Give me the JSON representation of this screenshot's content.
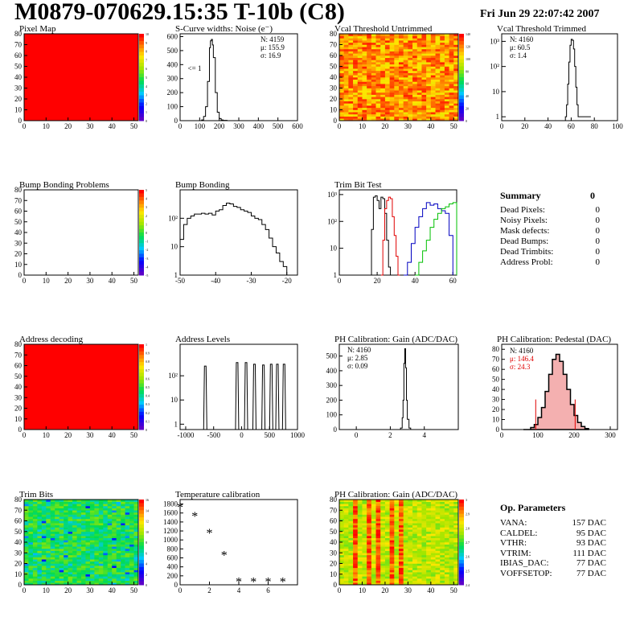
{
  "header": {
    "title": "M0879-070629.15:35 T-10b (C8)",
    "date": "Fri Jun 29 22:07:42 2007"
  },
  "chart_data": [
    {
      "id": "pixel-map",
      "type": "heatmap",
      "title": "Pixel Map",
      "xlim": [
        0,
        52
      ],
      "ylim": [
        0,
        80
      ],
      "xticks": [
        0,
        10,
        20,
        30,
        40,
        50
      ],
      "yticks": [
        0,
        10,
        20,
        30,
        40,
        50,
        60,
        70,
        80
      ],
      "colorbar_ticks": [
        "10",
        "9",
        "8",
        "7",
        "6",
        "5",
        "4",
        "3",
        "2",
        "1",
        "0"
      ],
      "fill": "uniform-red"
    },
    {
      "id": "scurve",
      "type": "line",
      "title": "S-Curve widths: Noise (e⁻)",
      "xlim": [
        0,
        600
      ],
      "ylim": [
        0,
        620
      ],
      "xticks": [
        0,
        100,
        200,
        300,
        400,
        500,
        600
      ],
      "yticks": [
        0,
        100,
        200,
        300,
        400,
        500,
        600
      ],
      "stats": [
        "N: 4159",
        "μ: 155.9",
        "σ: 16.9"
      ],
      "annotation": "<= 1",
      "x": [
        100,
        110,
        120,
        130,
        140,
        150,
        155,
        160,
        165,
        170,
        180,
        190,
        200,
        210,
        220,
        240
      ],
      "y": [
        0,
        5,
        30,
        100,
        280,
        520,
        570,
        580,
        540,
        450,
        200,
        60,
        15,
        5,
        2,
        0
      ]
    },
    {
      "id": "vcal-untrimmed",
      "type": "heatmap",
      "title": "Vcal Threshold Untrimmed",
      "xlim": [
        0,
        52
      ],
      "ylim": [
        0,
        80
      ],
      "xticks": [
        0,
        10,
        20,
        30,
        40,
        50
      ],
      "yticks": [
        0,
        10,
        20,
        30,
        40,
        50,
        60,
        70,
        80
      ],
      "colorbar_ticks": [
        "140",
        "120",
        "100",
        "80",
        "60",
        "40",
        "20",
        "0"
      ],
      "fill": "orange-noisy"
    },
    {
      "id": "vcal-trimmed",
      "type": "line",
      "title": "Vcal Threshold Trimmed",
      "yscale": "log",
      "xlim": [
        0,
        100
      ],
      "ylim": [
        0.7,
        2000
      ],
      "xticks": [
        0,
        20,
        40,
        60,
        80,
        100
      ],
      "yticks": [
        "1",
        "10",
        "10²",
        "10³"
      ],
      "stats": [
        "N: 4160",
        "μ: 60.5",
        "σ: 1.4"
      ],
      "x": [
        55,
        56,
        57,
        58,
        59,
        60,
        61,
        62,
        63,
        64,
        65,
        66,
        70,
        71,
        72,
        74,
        75,
        76,
        77
      ],
      "y": [
        1,
        3,
        20,
        150,
        700,
        1200,
        1100,
        500,
        100,
        15,
        3,
        1,
        1,
        1,
        1,
        1,
        1,
        1,
        1
      ]
    },
    {
      "id": "bump-problems",
      "type": "heatmap",
      "title": "Bump Bonding Problems",
      "xlim": [
        0,
        52
      ],
      "ylim": [
        0,
        80
      ],
      "xticks": [
        0,
        10,
        20,
        30,
        40,
        50
      ],
      "yticks": [
        0,
        10,
        20,
        30,
        40,
        50,
        60,
        70,
        80
      ],
      "colorbar_ticks": [
        "5",
        "4",
        "3",
        "2",
        "1",
        "0",
        "-1",
        "-2",
        "-3",
        "-4",
        "-5"
      ],
      "fill": "empty"
    },
    {
      "id": "bump-bonding",
      "type": "line",
      "title": "Bump Bonding",
      "yscale": "log",
      "xlim": [
        -50,
        -17
      ],
      "ylim": [
        1,
        1000
      ],
      "xticks": [
        -50,
        -40,
        -30,
        -20
      ],
      "yticks": [
        "1",
        "10",
        "10²"
      ],
      "x": [
        -50,
        -49,
        -48,
        -47,
        -46,
        -45,
        -44,
        -43,
        -42,
        -41,
        -40,
        -39,
        -38,
        -37,
        -36,
        -35,
        -34,
        -33,
        -32,
        -31,
        -30,
        -29,
        -28,
        -27,
        -26,
        -25,
        -24,
        -23,
        -22,
        -21,
        -20,
        -19
      ],
      "y": [
        18,
        60,
        100,
        120,
        140,
        140,
        150,
        140,
        150,
        130,
        180,
        200,
        280,
        340,
        320,
        260,
        240,
        200,
        180,
        160,
        120,
        100,
        90,
        60,
        40,
        20,
        10,
        6,
        3,
        2,
        1,
        1
      ]
    },
    {
      "id": "trim-bit-test",
      "type": "line",
      "title": "Trim Bit Test",
      "yscale": "log",
      "xlim": [
        0,
        62
      ],
      "ylim": [
        1,
        1500
      ],
      "xticks": [
        0,
        20,
        40,
        60
      ],
      "yticks": [
        "1",
        "10",
        "10²",
        "10³"
      ],
      "series": [
        {
          "color": "#000000",
          "x": [
            16,
            17,
            18,
            19,
            20,
            21,
            22,
            23,
            24,
            25,
            26,
            27,
            28
          ],
          "y": [
            1,
            50,
            800,
            900,
            600,
            300,
            800,
            700,
            200,
            20,
            2,
            1,
            1
          ]
        },
        {
          "color": "#e00000",
          "x": [
            22,
            23,
            24,
            25,
            26,
            27,
            28,
            29,
            30,
            31,
            32
          ],
          "y": [
            1,
            20,
            300,
            600,
            800,
            700,
            150,
            30,
            5,
            1,
            1
          ]
        },
        {
          "color": "#0000c0",
          "x": [
            34,
            36,
            38,
            40,
            42,
            44,
            46,
            48,
            50,
            52,
            54,
            56,
            58,
            60
          ],
          "y": [
            1,
            3,
            15,
            60,
            150,
            300,
            500,
            400,
            450,
            300,
            250,
            200,
            30,
            1
          ]
        },
        {
          "color": "#00c000",
          "x": [
            40,
            42,
            44,
            46,
            48,
            50,
            52,
            54,
            56,
            58,
            60,
            62
          ],
          "y": [
            1,
            3,
            8,
            20,
            60,
            120,
            200,
            300,
            350,
            450,
            500,
            1
          ]
        }
      ]
    },
    {
      "id": "address-decoding",
      "type": "heatmap",
      "title": "Address decoding",
      "xlim": [
        0,
        52
      ],
      "ylim": [
        0,
        80
      ],
      "xticks": [
        0,
        10,
        20,
        30,
        40,
        50
      ],
      "yticks": [
        0,
        10,
        20,
        30,
        40,
        50,
        60,
        70,
        80
      ],
      "colorbar_ticks": [
        "1",
        "0.9",
        "0.8",
        "0.7",
        "0.6",
        "0.5",
        "0.4",
        "0.3",
        "0.2",
        "0.1",
        "0"
      ],
      "fill": "uniform-red"
    },
    {
      "id": "address-levels",
      "type": "line",
      "title": "Address Levels",
      "yscale": "log",
      "xlim": [
        -1100,
        1000
      ],
      "ylim": [
        0.6,
        2000
      ],
      "xticks": [
        -1000,
        -500,
        0,
        500,
        1000
      ],
      "yticks": [
        "1",
        "10",
        "10²"
      ],
      "peaks": [
        -650,
        -80,
        80,
        230,
        390,
        530,
        640,
        760
      ],
      "heights": [
        250,
        350,
        350,
        300,
        280,
        300,
        300,
        300
      ]
    },
    {
      "id": "ph-gain",
      "type": "line",
      "title": "PH Calibration: Gain (ADC/DAC)",
      "xlim": [
        -1,
        6
      ],
      "ylim": [
        0,
        580
      ],
      "xticks": [
        0,
        2,
        4
      ],
      "yticks": [
        0,
        100,
        200,
        300,
        400,
        500
      ],
      "stats": [
        "N: 4160",
        "μ: 2.85",
        "σ: 0.09"
      ],
      "x": [
        2.5,
        2.6,
        2.7,
        2.75,
        2.8,
        2.85,
        2.9,
        2.95,
        3.0,
        3.1,
        3.2
      ],
      "y": [
        0,
        10,
        80,
        200,
        450,
        550,
        420,
        200,
        70,
        10,
        0
      ]
    },
    {
      "id": "ph-pedestal",
      "type": "area",
      "title": "PH Calibration: Pedestal (DAC)",
      "xlim": [
        0,
        320
      ],
      "ylim": [
        0,
        85
      ],
      "xticks": [
        0,
        100,
        200,
        300
      ],
      "yticks": [
        0,
        10,
        20,
        30,
        40,
        50,
        60,
        70,
        80
      ],
      "stats": [
        "N: 4160",
        "μ: 146.4",
        "σ: 24.3"
      ],
      "stat_colors": [
        "#000000",
        "#e00000",
        "#e00000"
      ],
      "cuts": [
        94,
        203
      ],
      "x": [
        60,
        80,
        90,
        100,
        110,
        120,
        130,
        140,
        150,
        160,
        170,
        180,
        190,
        200,
        210,
        220,
        230,
        240
      ],
      "y": [
        0,
        2,
        5,
        12,
        22,
        38,
        55,
        70,
        75,
        68,
        55,
        40,
        25,
        14,
        7,
        3,
        1,
        0
      ]
    },
    {
      "id": "trim-bits",
      "type": "heatmap",
      "title": "Trim Bits",
      "xlim": [
        0,
        52
      ],
      "ylim": [
        0,
        80
      ],
      "xticks": [
        0,
        10,
        20,
        30,
        40,
        50
      ],
      "yticks": [
        0,
        10,
        20,
        30,
        40,
        50,
        60,
        70,
        80
      ],
      "colorbar_ticks": [
        "16",
        "14",
        "12",
        "10",
        "8",
        "6",
        "4",
        "2",
        "0"
      ],
      "fill": "green-noisy"
    },
    {
      "id": "temp-calibration",
      "type": "scatter",
      "title": "Temperature calibration",
      "xlim": [
        0,
        8
      ],
      "ylim": [
        0,
        1900
      ],
      "xticks": [
        0,
        2,
        4,
        6
      ],
      "yticks": [
        0,
        200,
        400,
        600,
        800,
        1000,
        1200,
        1400,
        1600,
        1800
      ],
      "x": [
        0,
        1,
        2,
        3,
        4,
        5,
        6,
        7
      ],
      "y": [
        1720,
        1520,
        1150,
        650,
        60,
        60,
        60,
        60
      ]
    },
    {
      "id": "ph-gain-map",
      "type": "heatmap",
      "title": "PH Calibration: Gain (ADC/DAC)",
      "xlim": [
        0,
        52
      ],
      "ylim": [
        0,
        80
      ],
      "xticks": [
        0,
        10,
        20,
        30,
        40,
        50
      ],
      "yticks": [
        0,
        10,
        20,
        30,
        40,
        50,
        60,
        70,
        80
      ],
      "colorbar_ticks": [
        "3",
        "2.9",
        "2.8",
        "2.7",
        "2.6",
        "2.5",
        "2.4"
      ],
      "fill": "gain-stripes"
    }
  ],
  "summary": {
    "title": "Summary",
    "total": "0",
    "rows": [
      {
        "label": "Dead Pixels:",
        "value": "0"
      },
      {
        "label": "Noisy Pixels:",
        "value": "0"
      },
      {
        "label": "Mask defects:",
        "value": "0"
      },
      {
        "label": "Dead Bumps:",
        "value": "0"
      },
      {
        "label": "Dead Trimbits:",
        "value": "0"
      },
      {
        "label": "Address Probl:",
        "value": "0"
      }
    ]
  },
  "params": {
    "title": "Op. Parameters",
    "rows": [
      {
        "label": "VANA:",
        "value": "157 DAC"
      },
      {
        "label": "CALDEL:",
        "value": "95 DAC"
      },
      {
        "label": "VTHR:",
        "value": "93 DAC"
      },
      {
        "label": "VTRIM:",
        "value": "111 DAC"
      },
      {
        "label": "IBIAS_DAC:",
        "value": "77 DAC"
      },
      {
        "label": "VOFFSETOP:",
        "value": "77 DAC"
      }
    ]
  }
}
